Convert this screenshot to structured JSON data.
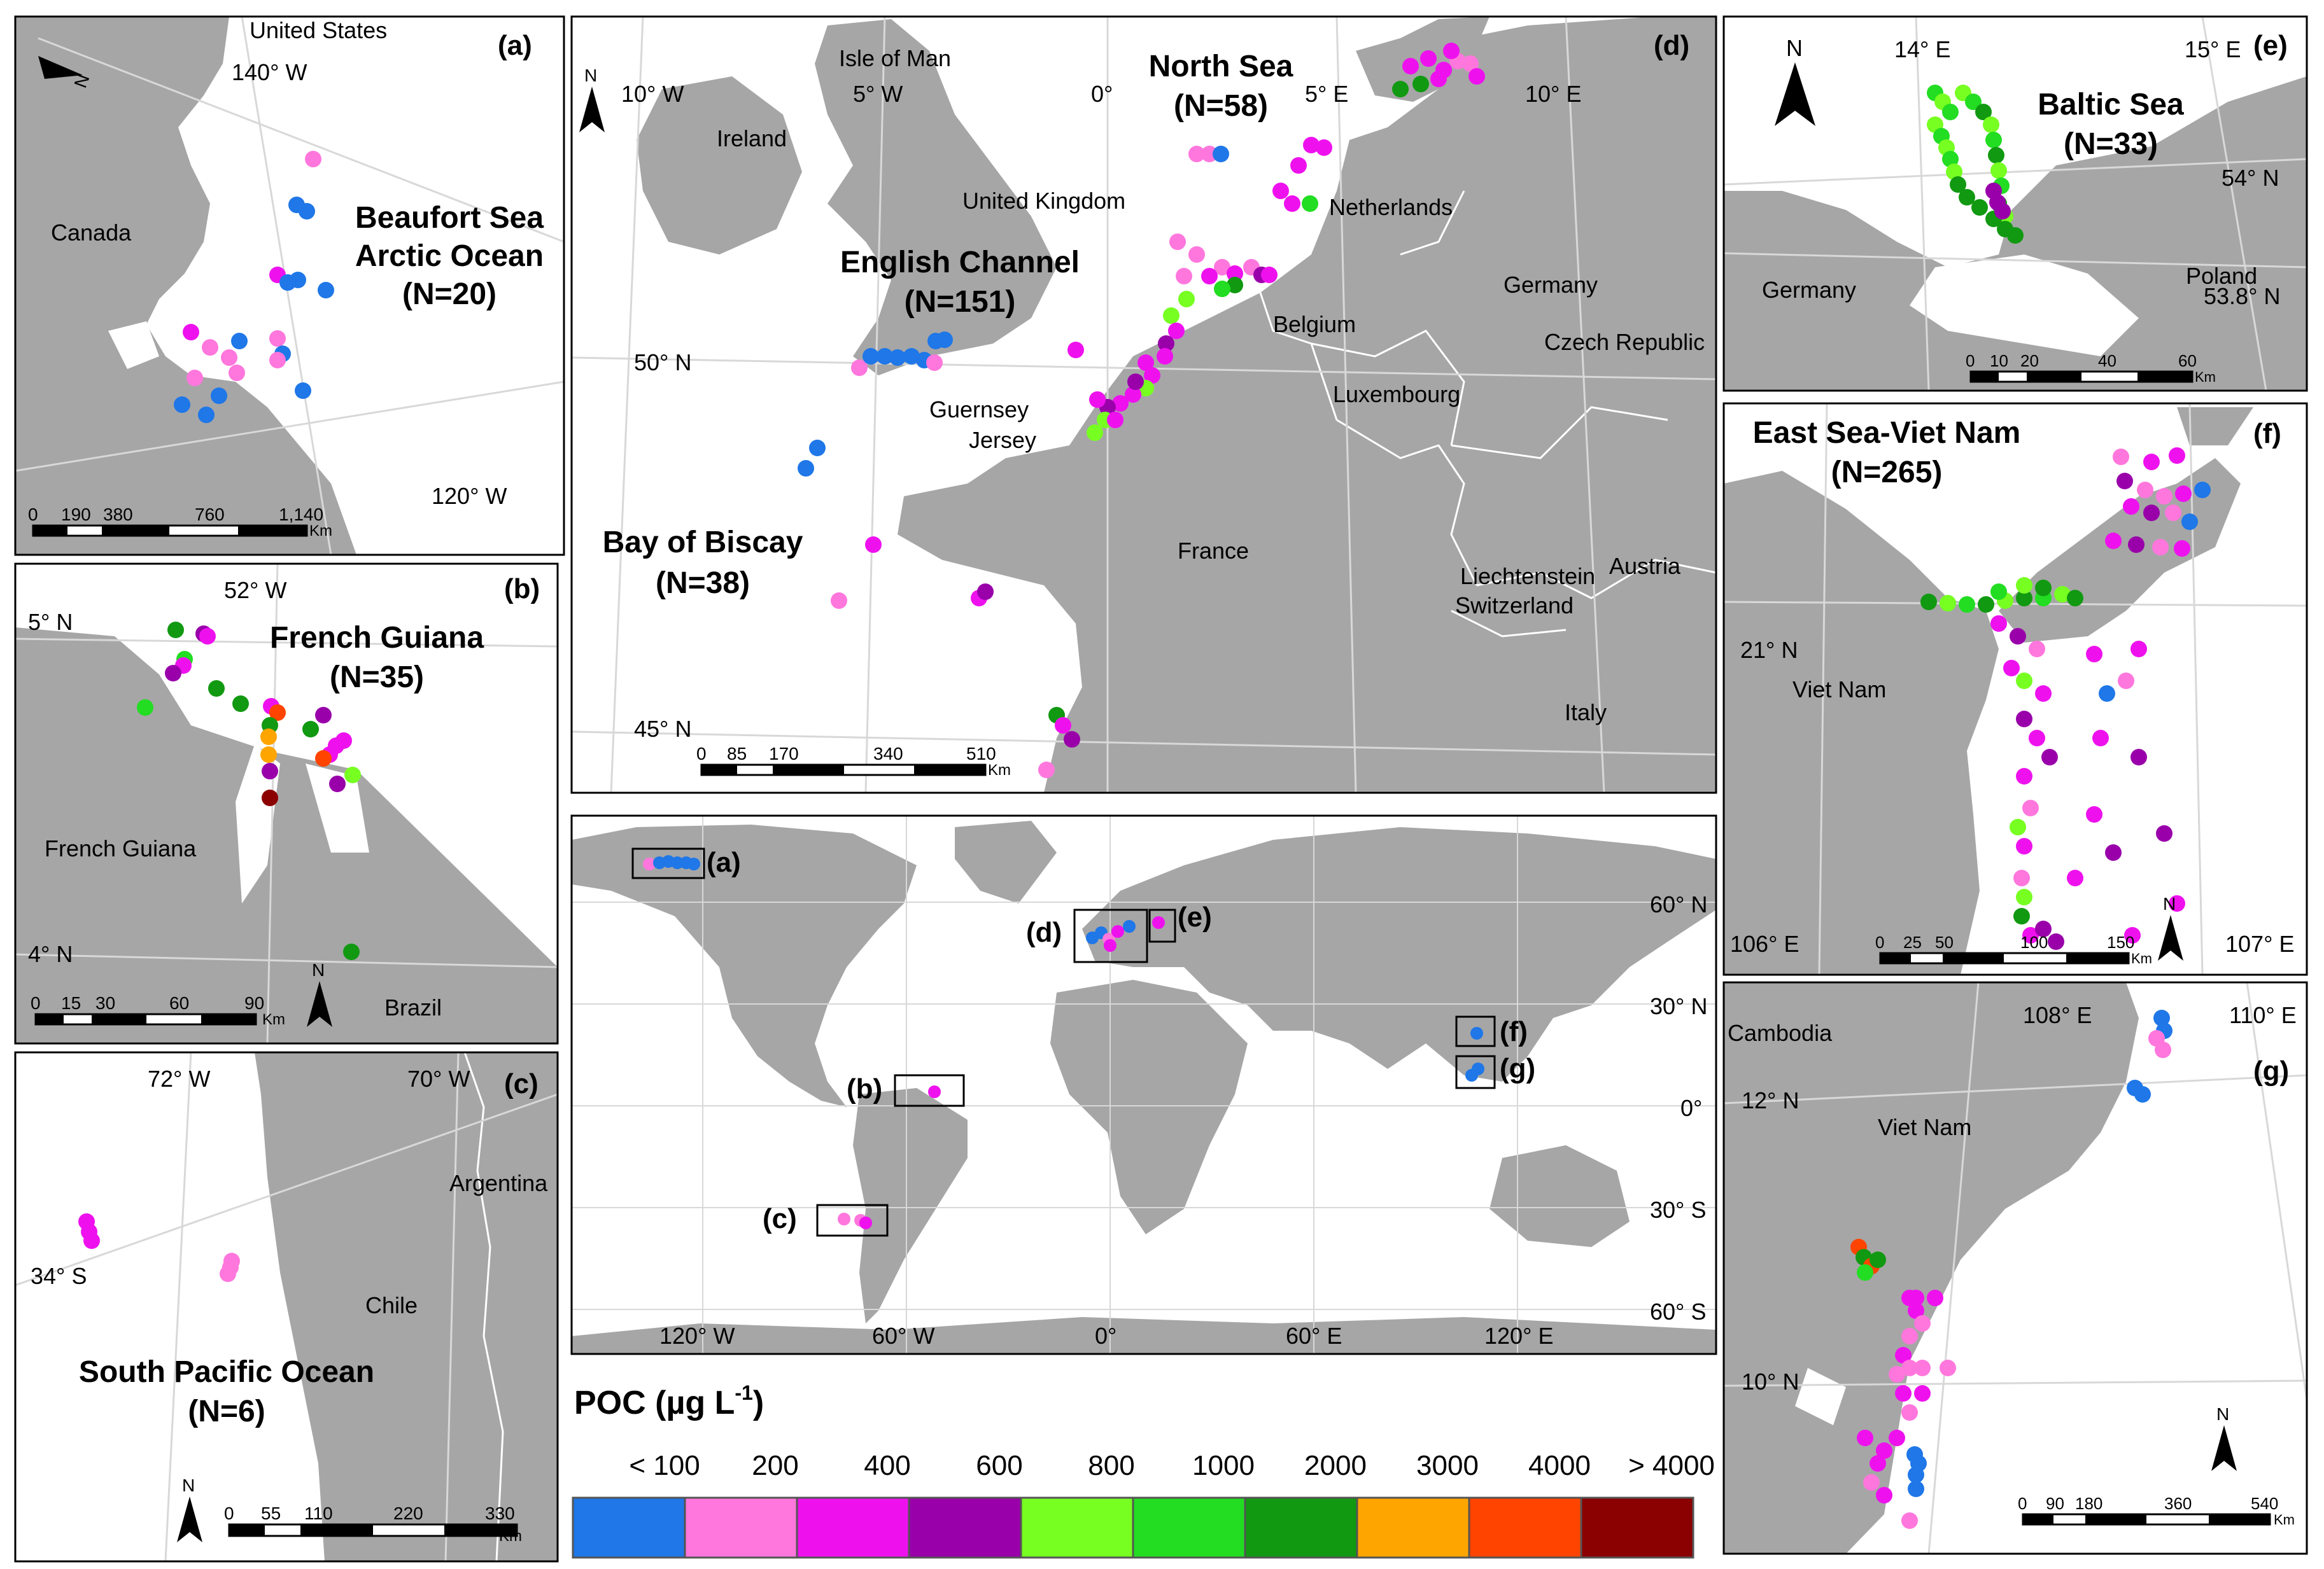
{
  "panels": {
    "a": {
      "tag": "(a)",
      "places": [
        "United States",
        "Canada"
      ],
      "grid": [
        "140° W",
        "120° W"
      ],
      "title": [
        "Beaufort Sea",
        "Arctic Ocean",
        "(N=20)"
      ],
      "scale": [
        "0",
        "190",
        "380",
        "760",
        "1,140",
        "Km"
      ]
    },
    "b": {
      "tag": "(b)",
      "places": [
        "French Guiana",
        "Brazil"
      ],
      "grid": [
        "52° W",
        "5° N",
        "4° N"
      ],
      "title": [
        "French Guiana",
        "(N=35)"
      ],
      "scale": [
        "0",
        "15",
        "30",
        "60",
        "90",
        "Km"
      ]
    },
    "c": {
      "tag": "(c)",
      "places": [
        "Argentina",
        "Chile"
      ],
      "grid": [
        "72° W",
        "70° W",
        "34° S"
      ],
      "title": [
        "South Pacific Ocean",
        "(N=6)"
      ],
      "scale": [
        "0",
        "55",
        "110",
        "220",
        "330",
        "Km"
      ]
    },
    "d": {
      "tag": "(d)",
      "places": [
        "Isle of Man",
        "Ireland",
        "United Kingdom",
        "Netherlands",
        "Germany",
        "Belgium",
        "Czech Republic",
        "Luxembourg",
        "Guernsey",
        "Jersey",
        "France",
        "Liechtenstein",
        "Austria",
        "Switzerland",
        "Italy"
      ],
      "grid": [
        "10° W",
        "5° W",
        "0°",
        "5° E",
        "10° E",
        "50° N",
        "45° N"
      ],
      "titles": {
        "north_sea": [
          "North Sea",
          "(N=58)"
        ],
        "english_channel": [
          "English Channel",
          "(N=151)"
        ],
        "biscay": [
          "Bay of Biscay",
          "(N=38)"
        ]
      },
      "scale": [
        "0",
        "85",
        "170",
        "340",
        "510",
        "Km"
      ]
    },
    "e": {
      "tag": "(e)",
      "places": [
        "Germany",
        "Poland"
      ],
      "grid": [
        "14° E",
        "15° E",
        "54° N",
        "53.8° N"
      ],
      "title": [
        "Baltic Sea",
        "(N=33)"
      ],
      "scale": [
        "0",
        "10",
        "20",
        "40",
        "60",
        "Km"
      ]
    },
    "f": {
      "tag": "(f)",
      "places": [
        "Viet Nam"
      ],
      "grid": [
        "21° N",
        "106° E",
        "107° E"
      ],
      "title": [
        "East Sea-Viet Nam",
        "(N=265)"
      ],
      "scale": [
        "0",
        "25",
        "50",
        "100",
        "150",
        "Km"
      ]
    },
    "g": {
      "tag": "(g)",
      "places": [
        "Cambodia",
        "Viet Nam"
      ],
      "grid": [
        "108° E",
        "110° E",
        "12° N",
        "10° N"
      ],
      "scale": [
        "0",
        "90",
        "180",
        "360",
        "540",
        "Km"
      ]
    },
    "world": {
      "insets": [
        "(a)",
        "(b)",
        "(c)",
        "(d)",
        "(e)",
        "(f)",
        "(g)"
      ],
      "lon": [
        "120° W",
        "60° W",
        "0°",
        "60° E",
        "120° E"
      ],
      "lat": [
        "60° N",
        "30° N",
        "0°",
        "30° S",
        "60° S"
      ]
    }
  },
  "north_label": "N",
  "legend": {
    "title": "POC (µg L",
    "title_sup": "-1",
    "title_end": ")",
    "labels": [
      "< 100",
      "200",
      "400",
      "600",
      "800",
      "1000",
      "2000",
      "3000",
      "4000",
      "> 4000"
    ],
    "colors": [
      "#1f77e8",
      "#ff77dd",
      "#ee11ee",
      "#9900aa",
      "#77ff22",
      "#22dd22",
      "#119911",
      "#ffa500",
      "#ff4400",
      "#8b0000"
    ]
  },
  "colors": {
    "land": "#a6a6a6",
    "sea": "#ffffff",
    "border": "#ffffff"
  }
}
